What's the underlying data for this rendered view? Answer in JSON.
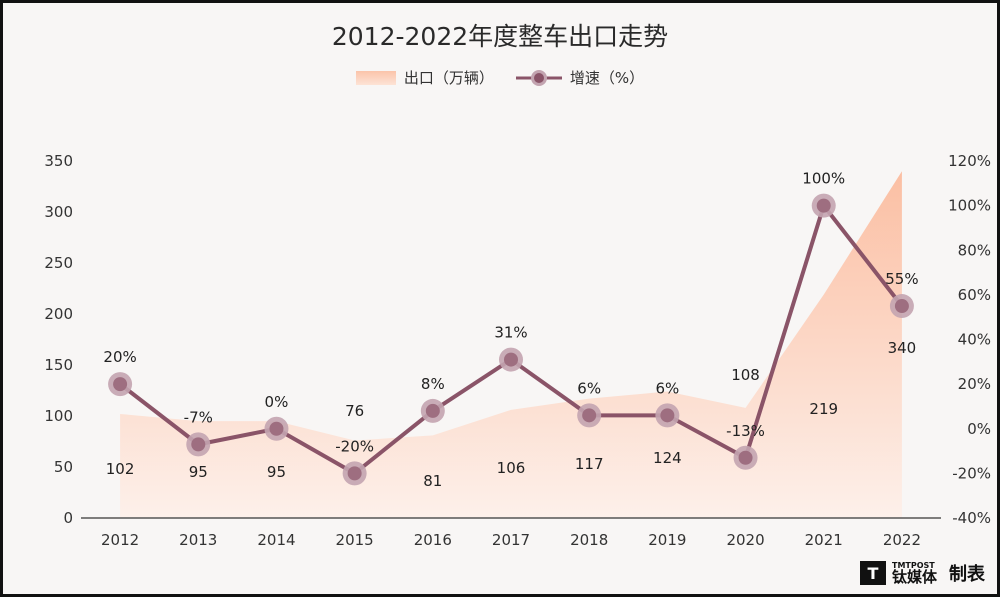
{
  "chart_data": {
    "type": "area+line",
    "title": "2012-2022年度整车出口走势",
    "categories": [
      "2012",
      "2013",
      "2014",
      "2015",
      "2016",
      "2017",
      "2018",
      "2019",
      "2020",
      "2021",
      "2022"
    ],
    "series": [
      {
        "name": "出口（万辆）",
        "type": "area",
        "axis": "left",
        "values": [
          102,
          95,
          95,
          76,
          81,
          106,
          117,
          124,
          108,
          219,
          340
        ],
        "labels": [
          "102",
          "95",
          "95",
          "76",
          "81",
          "106",
          "117",
          "124",
          "108",
          "219",
          "340"
        ]
      },
      {
        "name": "增速（%）",
        "type": "line",
        "axis": "right",
        "values": [
          20,
          -7,
          0,
          -20,
          8,
          31,
          6,
          6,
          -13,
          100,
          55
        ],
        "labels": [
          "20%",
          "-7%",
          "0%",
          "-20%",
          "8%",
          "31%",
          "6%",
          "6%",
          "-13%",
          "100%",
          "55%"
        ]
      }
    ],
    "y_left": {
      "min": 0,
      "max": 350,
      "ticks": [
        "0",
        "50",
        "100",
        "150",
        "200",
        "250",
        "300",
        "350"
      ]
    },
    "y_right": {
      "min": -40,
      "max": 120,
      "ticks": [
        "-40%",
        "-20%",
        "0%",
        "20%",
        "40%",
        "60%",
        "80%",
        "100%",
        "120%"
      ]
    },
    "legend": "top-center",
    "grid": false,
    "colors": {
      "area_top": "#fbbfa3",
      "area_bottom": "#fdf0ea",
      "line": "#8a5468",
      "marker": "#9e6e80",
      "marker_halo": "#c3a4b0"
    }
  },
  "legend": {
    "area_label": "出口（万辆）",
    "line_label": "增速（%）"
  },
  "brand": {
    "small": "TMTPOST",
    "name": "钛媒体",
    "suffix": "制表",
    "mark": "T"
  }
}
